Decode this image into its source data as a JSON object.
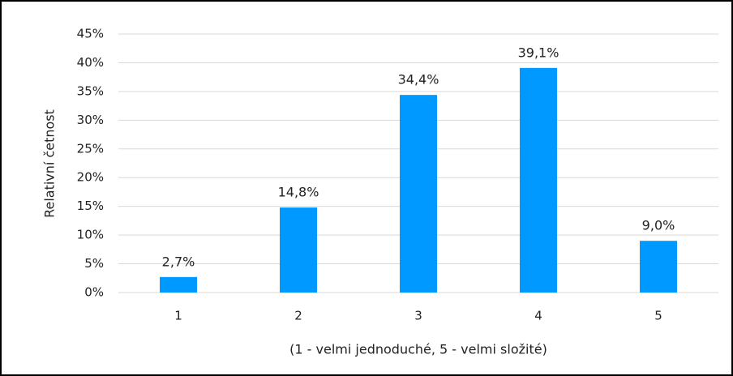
{
  "chart_data": {
    "type": "bar",
    "x_label": "(1 - velmi jednoduché, 5 - velmi složité)",
    "y_label": "Relativní četnost",
    "categories": [
      "1",
      "2",
      "3",
      "4",
      "5"
    ],
    "values": [
      2.7,
      14.8,
      34.4,
      39.1,
      9.0
    ],
    "value_labels": [
      "2,7%",
      "14,8%",
      "34,4%",
      "39,1%",
      "9,0%"
    ],
    "color": "#0099ff",
    "ylim": [
      0,
      45
    ],
    "yticks": [
      {
        "value": 0,
        "label": "0%"
      },
      {
        "value": 5,
        "label": "5%"
      },
      {
        "value": 10,
        "label": "10%"
      },
      {
        "value": 15,
        "label": "15%"
      },
      {
        "value": 20,
        "label": "20%"
      },
      {
        "value": 25,
        "label": "25%"
      },
      {
        "value": 30,
        "label": "30%"
      },
      {
        "value": 35,
        "label": "35%"
      },
      {
        "value": 40,
        "label": "40%"
      },
      {
        "value": 45,
        "label": "45%"
      }
    ],
    "grid": true
  }
}
